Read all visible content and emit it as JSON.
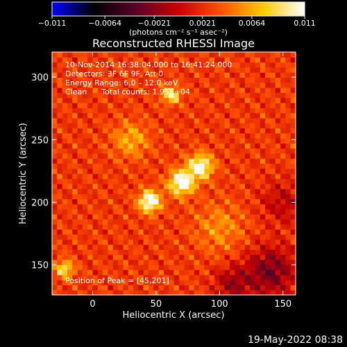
{
  "chart_data": {
    "type": "heatmap",
    "title": "Reconstructed RHESSI Image",
    "xlabel": "Heliocentric X (arcsec)",
    "ylabel": "Heliocentric Y (arcsec)",
    "xlim": [
      -32,
      160
    ],
    "ylim": [
      126,
      320
    ],
    "x_ticks": [
      0,
      50,
      100,
      150
    ],
    "y_ticks": [
      150,
      200,
      250,
      300
    ],
    "x_tick_labels": [
      "0",
      "50",
      "100",
      "150"
    ],
    "y_tick_labels": [
      "150",
      "200",
      "250",
      "300"
    ],
    "colorbar": {
      "min": -0.011,
      "max": 0.011,
      "tick_values": [
        -0.011,
        -0.0064,
        -0.0021,
        0.0021,
        0.0064,
        0.011
      ],
      "tick_labels": [
        "−0.011",
        "−0.0064",
        "−0.0021",
        "0.0021",
        "0.0064",
        "0.011"
      ],
      "unit_label": "(photons cm⁻² s⁻¹ asec⁻²)"
    },
    "colors": [
      "#0000ff",
      "#000000",
      "#5a0028",
      "#c80000",
      "#ff5000",
      "#ffc800",
      "#ffffff"
    ],
    "info_lines": [
      "10-Nov-2014 16:38:04.000 to 16:41:24.000",
      "Detectors: 3F 6F 9F, Att 0",
      "Energy Range: 6.0 – 12.0 keV",
      "Clean      Total counts: 1.95E+04"
    ],
    "peak_label": "Position of Peak = [45,201]",
    "peak": {
      "x": 45,
      "y": 201
    },
    "sources": [
      {
        "x": 45,
        "y": 201,
        "amp": 1.0,
        "sigma": 6
      },
      {
        "x": 70,
        "y": 216,
        "amp": 0.95,
        "sigma": 7
      },
      {
        "x": 85,
        "y": 229,
        "amp": 0.85,
        "sigma": 7
      },
      {
        "x": 62,
        "y": 286,
        "amp": 0.7,
        "sigma": 5
      },
      {
        "x": -22,
        "y": 147,
        "amp": 0.65,
        "sigma": 5
      },
      {
        "x": 30,
        "y": 250,
        "amp": 0.4,
        "sigma": 10
      },
      {
        "x": 100,
        "y": 180,
        "amp": 0.3,
        "sigma": 14
      }
    ],
    "negative_regions": [
      {
        "x": 140,
        "y": 145,
        "amp": -0.55,
        "sigma": 14
      },
      {
        "x": 150,
        "y": 200,
        "amp": -0.3,
        "sigma": 12
      },
      {
        "x": 110,
        "y": 135,
        "amp": -0.4,
        "sigma": 10
      }
    ]
  },
  "footer": {
    "timestamp": "19-May-2022 08:38"
  }
}
